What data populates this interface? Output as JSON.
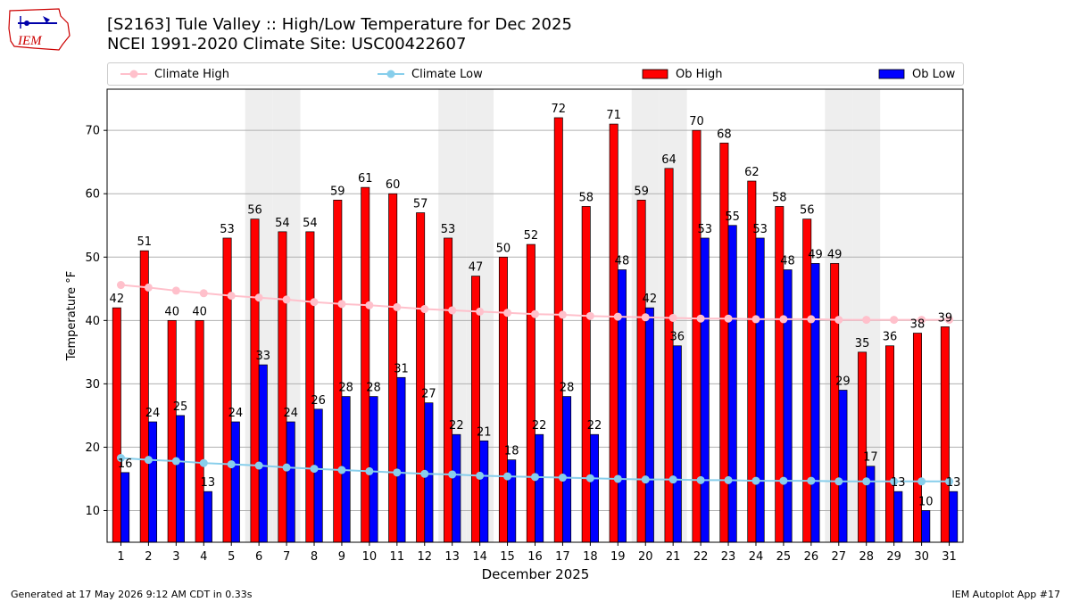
{
  "logo_text": "IEM",
  "title_line1": "[S2163] Tule Valley :: High/Low Temperature for Dec 2025",
  "title_line2": "NCEI 1991-2020 Climate Site: USC00422607",
  "legend": {
    "climate_high": "Climate High",
    "climate_low": "Climate Low",
    "ob_high": "Ob High",
    "ob_low": "Ob Low"
  },
  "footer": {
    "generated": "Generated at 17 May 2026 9:12 AM CDT in 0.33s",
    "app": "IEM Autoplot App #17"
  },
  "colors": {
    "ob_high": "#ff0000",
    "ob_low": "#0000ff",
    "climate_high": "#ffc0cb",
    "climate_low": "#87ceeb",
    "weekend_shade": "#eeeeee"
  },
  "chart_data": {
    "type": "bar",
    "xlabel": "December 2025",
    "ylabel": "Temperature °F",
    "ylim": [
      5,
      76.5
    ],
    "yticks": [
      10,
      20,
      30,
      40,
      50,
      60,
      70
    ],
    "grid": "horizontal",
    "legend_position": "top",
    "categories": [
      "1",
      "2",
      "3",
      "4",
      "5",
      "6",
      "7",
      "8",
      "9",
      "10",
      "11",
      "12",
      "13",
      "14",
      "15",
      "16",
      "17",
      "18",
      "19",
      "20",
      "21",
      "22",
      "23",
      "24",
      "25",
      "26",
      "27",
      "28",
      "29",
      "30",
      "31"
    ],
    "shaded_days": [
      6,
      7,
      13,
      14,
      20,
      21,
      27,
      28
    ],
    "series": [
      {
        "name": "Ob High",
        "kind": "bar",
        "values": [
          42,
          51,
          40,
          40,
          53,
          56,
          54,
          54,
          59,
          61,
          60,
          57,
          53,
          47,
          50,
          52,
          72,
          58,
          71,
          59,
          64,
          70,
          68,
          62,
          58,
          56,
          49,
          35,
          36,
          38,
          39
        ],
        "labels": [
          "42",
          "51",
          "40",
          "40",
          "53",
          "56",
          "54",
          "54",
          "59",
          "61",
          "60",
          "57",
          "53",
          "47",
          "50",
          "52",
          "72",
          "58",
          "71",
          "59",
          "64",
          "70",
          "68",
          "62",
          "58",
          "56",
          "49",
          "35",
          "36",
          "38",
          "39"
        ]
      },
      {
        "name": "Ob Low",
        "kind": "bar",
        "values": [
          16,
          24,
          25,
          13,
          24,
          33,
          24,
          26,
          28,
          28,
          31,
          27,
          22,
          21,
          18,
          22,
          28,
          22,
          48,
          42,
          36,
          53,
          55,
          53,
          48,
          49,
          29,
          17,
          13,
          10,
          13
        ],
        "labels": [
          "16",
          "24",
          "25",
          "13",
          "24",
          "33",
          "24",
          "26",
          "28",
          "28",
          "31",
          "27",
          "22",
          "21",
          "18",
          "22",
          "28",
          "22",
          "48",
          "42",
          "36",
          "53",
          "55",
          "53",
          "48",
          "49",
          "29",
          "17",
          "13",
          "10",
          "13"
        ]
      },
      {
        "name": "Climate High",
        "kind": "line",
        "values": [
          45.6,
          45.2,
          44.7,
          44.3,
          43.9,
          43.6,
          43.3,
          42.9,
          42.6,
          42.4,
          42.1,
          41.8,
          41.6,
          41.4,
          41.2,
          41.0,
          40.9,
          40.7,
          40.6,
          40.5,
          40.4,
          40.3,
          40.3,
          40.2,
          40.2,
          40.2,
          40.1,
          40.1,
          40.1,
          40.1,
          40.1
        ]
      },
      {
        "name": "Climate Low",
        "kind": "line",
        "values": [
          18.3,
          18.0,
          17.8,
          17.5,
          17.3,
          17.1,
          16.8,
          16.6,
          16.4,
          16.2,
          16.0,
          15.8,
          15.7,
          15.5,
          15.4,
          15.3,
          15.2,
          15.1,
          15.0,
          14.9,
          14.9,
          14.8,
          14.8,
          14.7,
          14.7,
          14.7,
          14.6,
          14.6,
          14.6,
          14.6,
          14.6
        ]
      }
    ]
  }
}
